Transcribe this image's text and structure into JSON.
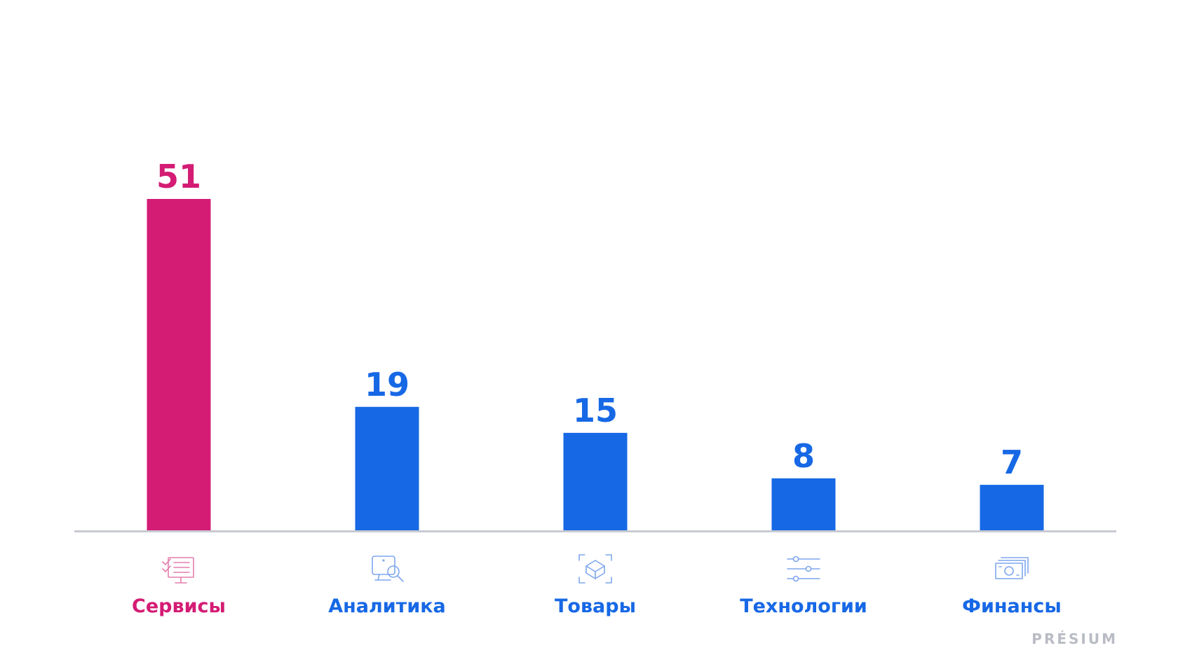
{
  "colors": {
    "highlight": "#D41C74",
    "bar": "#1768E5",
    "axis": "#C9CBD1",
    "highlight_icon": "#E37FAE",
    "icon": "#7FA6EE",
    "brand": "#B9BCC4"
  },
  "chart_data": {
    "type": "bar",
    "categories": [
      "Сервисы",
      "Аналитика",
      "Товары",
      "Технологии",
      "Финансы"
    ],
    "values": [
      51,
      19,
      15,
      8,
      7
    ],
    "highlight_index": 0,
    "icons": [
      "checklist-monitor-icon",
      "monitor-search-icon",
      "box-scan-icon",
      "sliders-icon",
      "banknotes-icon"
    ],
    "ylim": [
      0,
      51
    ]
  },
  "brand": "PRÉSIUM"
}
